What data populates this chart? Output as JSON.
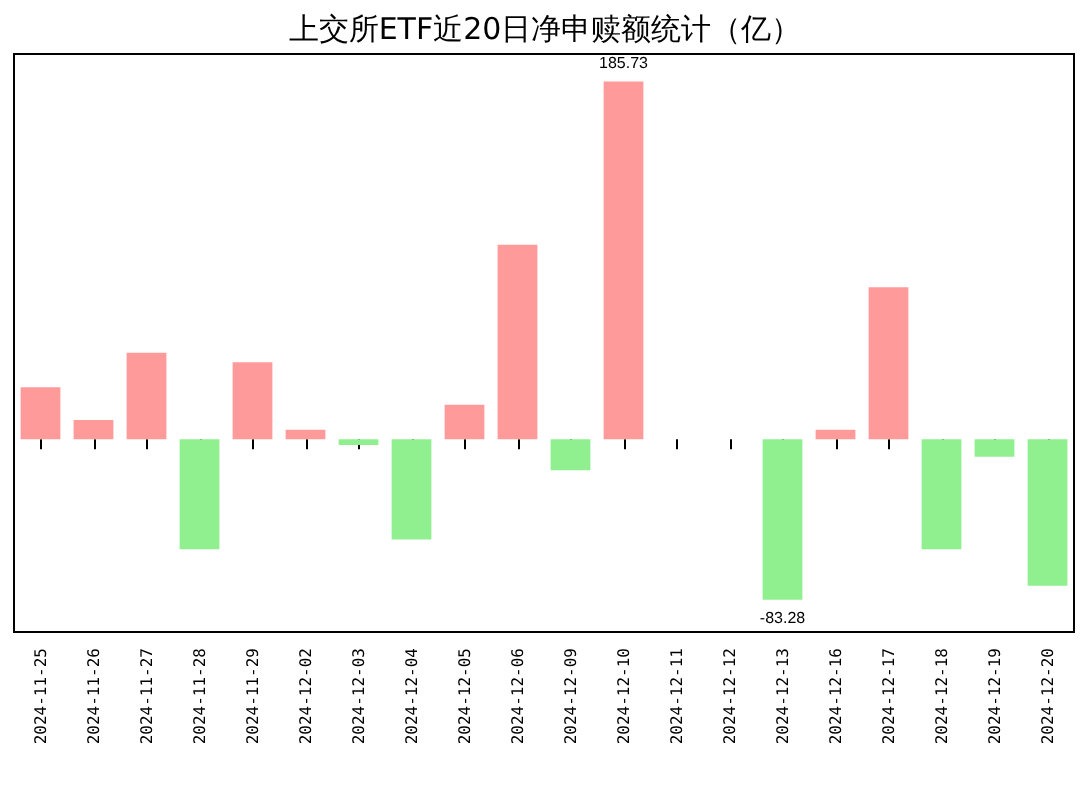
{
  "chart_data": {
    "type": "bar",
    "title": "上交所ETF近20日净申赎额统计（亿）",
    "categories": [
      "2024-11-25",
      "2024-11-26",
      "2024-11-27",
      "2024-11-28",
      "2024-11-29",
      "2024-12-02",
      "2024-12-03",
      "2024-12-04",
      "2024-12-05",
      "2024-12-06",
      "2024-12-09",
      "2024-12-10",
      "2024-12-11",
      "2024-12-12",
      "2024-12-13",
      "2024-12-16",
      "2024-12-17",
      "2024-12-18",
      "2024-12-19",
      "2024-12-20"
    ],
    "values": [
      27,
      10,
      45,
      -57,
      40,
      5,
      -3,
      -52,
      18,
      101,
      -16,
      185.73,
      0,
      0,
      -83.28,
      5,
      79,
      -57,
      -9,
      -76
    ],
    "value_labels": [
      null,
      null,
      null,
      null,
      null,
      null,
      null,
      null,
      null,
      null,
      null,
      "185.73",
      null,
      null,
      "-83.28",
      null,
      null,
      null,
      null,
      null
    ],
    "colors": [
      "#ff9a9a",
      "#ff9a9a",
      "#ff9a9a",
      "#90f090",
      "#ff9a9a",
      "#ff9a9a",
      "#90f090",
      "#90f090",
      "#ff9a9a",
      "#ff9a9a",
      "#90f090",
      "#ff9a9a",
      "#ff9a9a",
      "#ff9a9a",
      "#90f090",
      "#ff9a9a",
      "#ff9a9a",
      "#90f090",
      "#90f090",
      "#90f090"
    ],
    "tick_labels": "x"
  }
}
